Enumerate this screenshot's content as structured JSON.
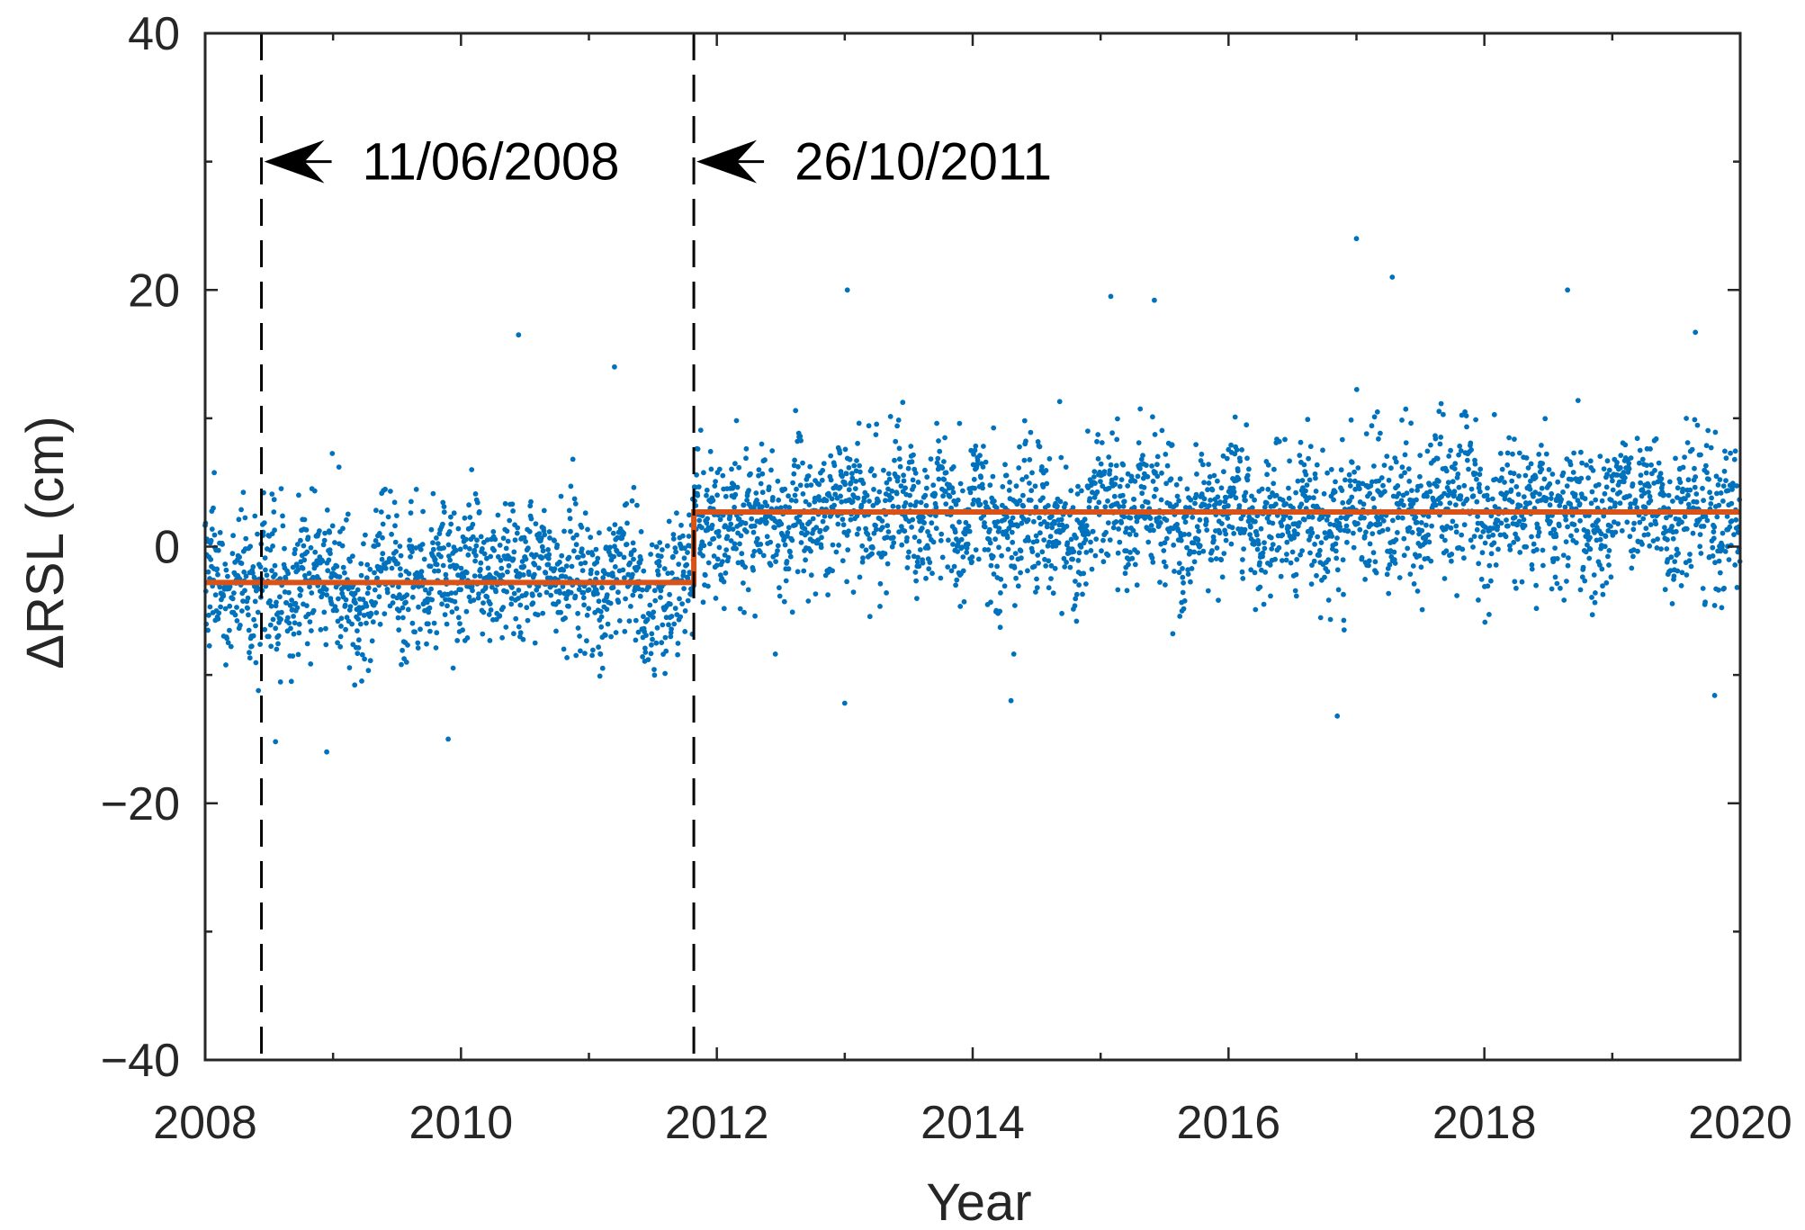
{
  "chart_data": {
    "type": "scatter",
    "title": "",
    "xlabel": "Year",
    "ylabel": "ΔRSL (cm)",
    "xlim": [
      2008,
      2020
    ],
    "ylim": [
      -40,
      40
    ],
    "xticks": [
      2008,
      2010,
      2012,
      2014,
      2016,
      2018,
      2020
    ],
    "yticks": [
      -40,
      -20,
      0,
      20,
      40
    ],
    "xtick_labels": [
      "2008",
      "2010",
      "2012",
      "2014",
      "2016",
      "2018",
      "2020"
    ],
    "ytick_labels": [
      "−40",
      "−20",
      "0",
      "20",
      "40"
    ],
    "grid": false,
    "legend": "none",
    "colors": {
      "points": "#0072BD",
      "fit": "#D95319",
      "events": "#000000",
      "axes": "#262626"
    },
    "series": [
      {
        "type": "scatter",
        "x_range": [
          2008.0,
          2020.0
        ],
        "sampling": "daily",
        "level_before_break": -2.8,
        "level_after_break": 2.7,
        "break_x": 2011.82,
        "spread_sd": 3.6,
        "outliers": [
          {
            "x": 2017.0,
            "y": 24
          },
          {
            "x": 2017.28,
            "y": 21
          },
          {
            "x": 2013.02,
            "y": 20
          },
          {
            "x": 2018.65,
            "y": 20
          },
          {
            "x": 2015.08,
            "y": 19.5
          },
          {
            "x": 2015.42,
            "y": 19.2
          },
          {
            "x": 2019.65,
            "y": 16.7
          },
          {
            "x": 2010.45,
            "y": 16.5
          },
          {
            "x": 2011.2,
            "y": 14
          },
          {
            "x": 2009.9,
            "y": -15
          },
          {
            "x": 2008.95,
            "y": -16
          },
          {
            "x": 2008.55,
            "y": -15.2
          },
          {
            "x": 2014.3,
            "y": -12
          },
          {
            "x": 2016.85,
            "y": -13.2
          },
          {
            "x": 2019.8,
            "y": -11.6
          },
          {
            "x": 2013.0,
            "y": -12.2
          }
        ]
      },
      {
        "type": "step",
        "x": [
          2008.0,
          2011.82,
          2011.82,
          2020.0
        ],
        "y": [
          -2.8,
          -2.8,
          2.7,
          2.7
        ]
      }
    ],
    "annotations": [
      {
        "x": 2008.44,
        "label": "11/06/2008",
        "style": "dashed-vertical",
        "arrow_y": 30
      },
      {
        "x": 2011.82,
        "label": "26/10/2011",
        "style": "dashed-vertical",
        "arrow_y": 30
      }
    ]
  }
}
